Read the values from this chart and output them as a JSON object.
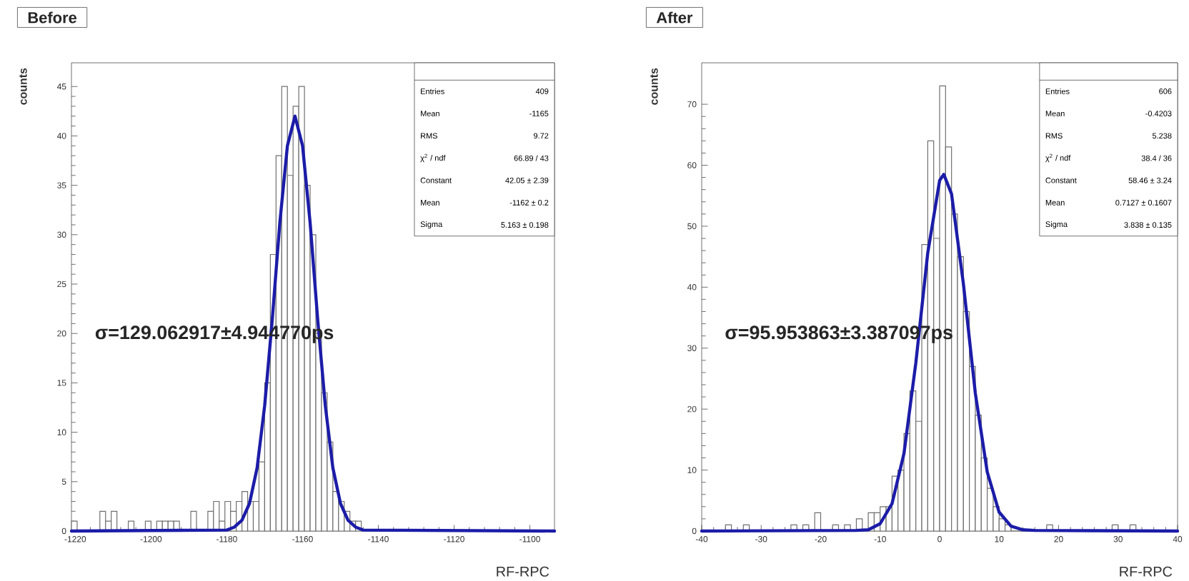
{
  "chart_data": [
    {
      "type": "histogram",
      "title": "Before",
      "xlabel": "RF-RPC",
      "ylabel": "counts",
      "xlim": [
        -1221,
        -1093.5
      ],
      "ylim": [
        0,
        47.4
      ],
      "xticks": [
        -1220,
        -1200,
        -1180,
        -1160,
        -1140,
        -1120,
        -1100
      ],
      "yticks": [
        0,
        5,
        10,
        15,
        20,
        25,
        30,
        35,
        40,
        45
      ],
      "series": [
        {
          "color": "#707070",
          "bins": [
            -1221,
            -1219.5,
            -1218,
            -1216.5,
            -1215,
            -1213.5,
            -1212,
            -1210.5,
            -1209,
            -1207.5,
            -1206,
            -1204.5,
            -1203,
            -1201.5,
            -1200,
            -1198.5,
            -1197,
            -1195.5,
            -1194,
            -1192.5,
            -1191,
            -1189.5,
            -1188,
            -1186.5,
            -1185,
            -1183.5,
            -1182,
            -1180.5,
            -1179,
            -1177.5,
            -1176,
            -1174.5,
            -1173,
            -1171.5,
            -1170,
            -1168.5,
            -1167,
            -1165.5,
            -1164,
            -1162.5,
            -1161,
            -1159.5,
            -1158,
            -1156.5,
            -1155,
            -1153.5,
            -1152,
            -1150.5,
            -1149,
            -1147.5,
            -1146,
            -1144.5,
            -1143,
            -1141.5,
            -1140,
            -1138.5,
            -1137,
            -1135.5,
            -1134,
            -1132.5,
            -1131,
            -1129.5,
            -1128,
            -1126.5,
            -1125,
            -1123.5,
            -1122,
            -1120.5,
            -1119,
            -1117.5,
            -1116,
            -1114.5,
            -1113,
            -1111.5,
            -1110,
            -1108.5,
            -1107,
            -1105.5,
            -1104,
            -1102.5,
            -1101,
            -1099.5,
            -1098,
            -1096.5,
            -1095,
            -1093.5
          ],
          "values": [
            1,
            0,
            0,
            0,
            0,
            2,
            1,
            2,
            0,
            0,
            1,
            0,
            0,
            1,
            0,
            1,
            1,
            1,
            1,
            0,
            0,
            2,
            0,
            0,
            2,
            3,
            1,
            3,
            2,
            3,
            4,
            3,
            3,
            7,
            15,
            28,
            38,
            45,
            36,
            43,
            45,
            35,
            30,
            20,
            14,
            9,
            4,
            3,
            2,
            1,
            1,
            0,
            0,
            0,
            0,
            0,
            0,
            0,
            0,
            0,
            0,
            0,
            0,
            0,
            0,
            0,
            0,
            0,
            0,
            0,
            0,
            0,
            0,
            0,
            0,
            0,
            0,
            0,
            0,
            0,
            0,
            0,
            0,
            0,
            0
          ]
        },
        {
          "type": "line",
          "color": "#1c1ca8",
          "x": [
            -1221,
            -1180,
            -1178,
            -1176,
            -1174,
            -1172,
            -1170,
            -1168,
            -1166,
            -1164,
            -1162,
            -1160,
            -1158,
            -1156,
            -1154,
            -1152,
            -1150,
            -1148,
            -1146,
            -1144,
            -1093.5
          ],
          "values": [
            0,
            0.1,
            0.4,
            1.1,
            2.8,
            6.4,
            12.7,
            21.4,
            31.2,
            39.0,
            42.0,
            39.0,
            31.2,
            21.4,
            12.7,
            6.4,
            2.8,
            1.1,
            0.4,
            0.1,
            0
          ]
        }
      ],
      "annotations": [
        "σ=129.062917±4.944770ps",
        "Entries",
        "409",
        "Mean",
        "-1165",
        "RMS",
        "9.72",
        "χ$^{2}$ / ndf",
        "66.89 / 43",
        "Constant",
        "42.05 ± 2.39",
        "Mean",
        "-1162 ± 0.2",
        "Sigma",
        "5.163 ± 0.198"
      ]
    },
    {
      "type": "histogram",
      "title": "After",
      "xlabel": "RF-RPC",
      "ylabel": "counts",
      "xlim": [
        -40,
        40
      ],
      "ylim": [
        0,
        76.8
      ],
      "xticks": [
        -40,
        -30,
        -20,
        -10,
        0,
        10,
        20,
        30,
        40
      ],
      "yticks": [
        0,
        10,
        20,
        30,
        40,
        50,
        60,
        70
      ],
      "series": [
        {
          "color": "#707070",
          "bins": [
            -40,
            -39,
            -38,
            -37,
            -36,
            -35,
            -34,
            -33,
            -32,
            -31,
            -30,
            -29,
            -28,
            -27,
            -26,
            -25,
            -24,
            -23,
            -22,
            -21,
            -20,
            -19,
            -18,
            -17,
            -16,
            -15,
            -14,
            -13,
            -12,
            -11,
            -10,
            -9,
            -8,
            -7,
            -6,
            -5,
            -4,
            -3,
            -2,
            -1,
            0,
            1,
            2,
            3,
            4,
            5,
            6,
            7,
            8,
            9,
            10,
            11,
            12,
            13,
            14,
            15,
            16,
            17,
            18,
            19,
            20,
            21,
            22,
            23,
            24,
            25,
            26,
            27,
            28,
            29,
            30,
            31,
            32,
            33,
            34,
            35,
            36,
            37,
            38,
            39,
            40
          ],
          "values": [
            0,
            0,
            0,
            0,
            1,
            0,
            0,
            1,
            0,
            0,
            0,
            0,
            0,
            0,
            0,
            1,
            0,
            1,
            0,
            3,
            0,
            0,
            1,
            0,
            1,
            0,
            2,
            0,
            3,
            3,
            4,
            4,
            9,
            10,
            16,
            23,
            18,
            47,
            64,
            48,
            73,
            63,
            52,
            45,
            36,
            27,
            19,
            12,
            7,
            4,
            2,
            1,
            0,
            0,
            0,
            0,
            0,
            0,
            1,
            0,
            0,
            0,
            0,
            0,
            0,
            0,
            0,
            0,
            0,
            1,
            0,
            0,
            1,
            0,
            0,
            0,
            0,
            0,
            0,
            0
          ]
        },
        {
          "type": "line",
          "color": "#1c1ca8",
          "x": [
            -40,
            -14,
            -12,
            -10,
            -8,
            -6,
            -4,
            -2,
            0,
            0.7,
            2,
            4,
            6,
            8,
            10,
            12,
            14,
            16,
            40
          ],
          "values": [
            0,
            0.1,
            0.2,
            1.2,
            4.5,
            12.7,
            27.6,
            45.6,
            57.5,
            58.5,
            55.3,
            40.5,
            22.6,
            9.7,
            3.1,
            0.8,
            0.2,
            0.1,
            0
          ]
        }
      ],
      "annotations": [
        "σ=95.953863±3.387097ps",
        "Entries",
        "606",
        "Mean",
        "-0.4203",
        "RMS",
        "5.238",
        "χ$^{2}$ / ndf",
        "38.4 / 36",
        "Constant",
        "58.46 ± 3.24",
        "Mean",
        "0.7127 ± 0.1607",
        "Sigma",
        "3.838 ± 0.135"
      ]
    }
  ]
}
